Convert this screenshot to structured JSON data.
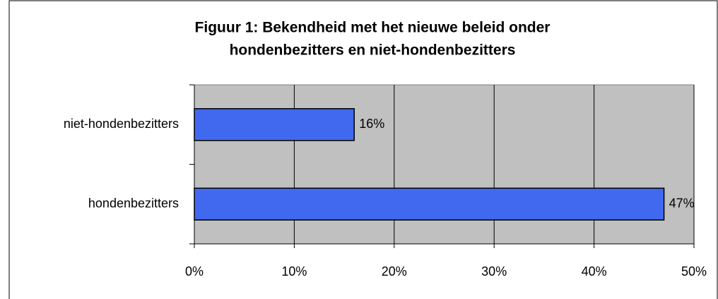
{
  "chart_data": {
    "type": "bar",
    "orientation": "horizontal",
    "title": [
      "Figuur 1: Bekendheid met het nieuwe beleid onder",
      "hondenbezitters en niet-hondenbezitters"
    ],
    "categories": [
      "niet-hondenbezitters",
      "hondenbezitters"
    ],
    "values": [
      16,
      47
    ],
    "value_labels": [
      "16%",
      "47%"
    ],
    "color": "#4169f0",
    "xlim": [
      0,
      50
    ],
    "xticks": [
      {
        "value": 0,
        "label": "0%"
      },
      {
        "value": 10,
        "label": "10%"
      },
      {
        "value": 20,
        "label": "20%"
      },
      {
        "value": 30,
        "label": "30%"
      },
      {
        "value": 40,
        "label": "40%"
      },
      {
        "value": 50,
        "label": "50%"
      }
    ],
    "grid": true
  }
}
